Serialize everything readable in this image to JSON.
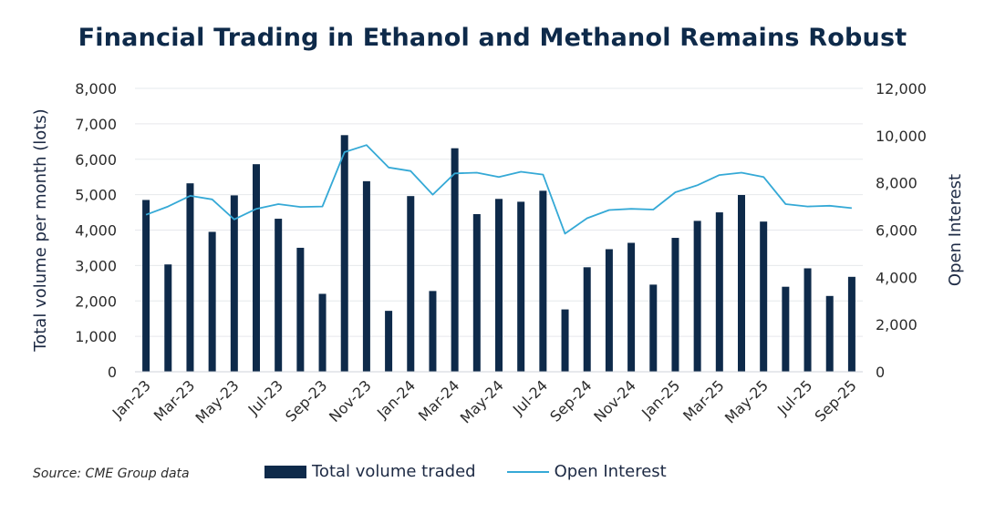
{
  "chart_data": {
    "type": "bar+line",
    "title": "Financial Trading in Ethanol and Methanol Remains Robust",
    "source": "Source: CME Group data",
    "x_tick_labels": [
      "Jan-23",
      "Mar-23",
      "May-23",
      "Jul-23",
      "Sep-23",
      "Nov-23",
      "Jan-24",
      "Mar-24",
      "May-24",
      "Jul-24",
      "Sep-24",
      "Nov-24",
      "Jan-25",
      "Mar-25",
      "May-25",
      "Jul-25",
      "Sep-25"
    ],
    "categories": [
      "Jan-23",
      "Feb-23",
      "Mar-23",
      "Apr-23",
      "May-23",
      "Jun-23",
      "Jul-23",
      "Aug-23",
      "Sep-23",
      "Oct-23",
      "Nov-23",
      "Dec-23",
      "Jan-24",
      "Feb-24",
      "Mar-24",
      "Apr-24",
      "May-24",
      "Jun-24",
      "Jul-24",
      "Aug-24",
      "Sep-24",
      "Oct-24",
      "Nov-24",
      "Dec-24",
      "Jan-25",
      "Feb-25",
      "Mar-25",
      "Apr-25",
      "May-25",
      "Jun-25",
      "Jul-25",
      "Aug-25",
      "Sep-25"
    ],
    "series": [
      {
        "name": "Total volume traded",
        "type": "bar",
        "axis": "left",
        "color": "#0e2a4a",
        "values": [
          4850,
          3030,
          5320,
          3950,
          4980,
          5860,
          4320,
          3500,
          2200,
          6680,
          5380,
          1720,
          4960,
          2280,
          6310,
          4450,
          4880,
          4800,
          5110,
          1760,
          2950,
          3460,
          3640,
          2460,
          3780,
          4260,
          4500,
          4990,
          4240,
          2400,
          2920,
          2140,
          2680
        ]
      },
      {
        "name": "Open Interest",
        "type": "line",
        "axis": "right",
        "color": "#35a9d6",
        "values": [
          6650,
          7000,
          7450,
          7300,
          6450,
          6900,
          7100,
          6980,
          7000,
          9300,
          9600,
          8650,
          8500,
          7500,
          8400,
          8430,
          8250,
          8470,
          8350,
          5850,
          6500,
          6850,
          6900,
          6870,
          7600,
          7900,
          8330,
          8430,
          8250,
          7100,
          7000,
          7030,
          6930
        ]
      }
    ],
    "ylabel": "Total volume per month (lots)",
    "ylim": [
      0,
      8000
    ],
    "yticks": [
      "0",
      "1,000",
      "2,000",
      "3,000",
      "4,000",
      "5,000",
      "6,000",
      "7,000",
      "8,000"
    ],
    "y2label": "Open Interest",
    "y2lim": [
      0,
      12000
    ],
    "y2ticks": [
      "0",
      "2,000",
      "4,000",
      "6,000",
      "8,000",
      "10,000",
      "12,000"
    ],
    "grid": "horizontal",
    "legend_position": "bottom"
  }
}
